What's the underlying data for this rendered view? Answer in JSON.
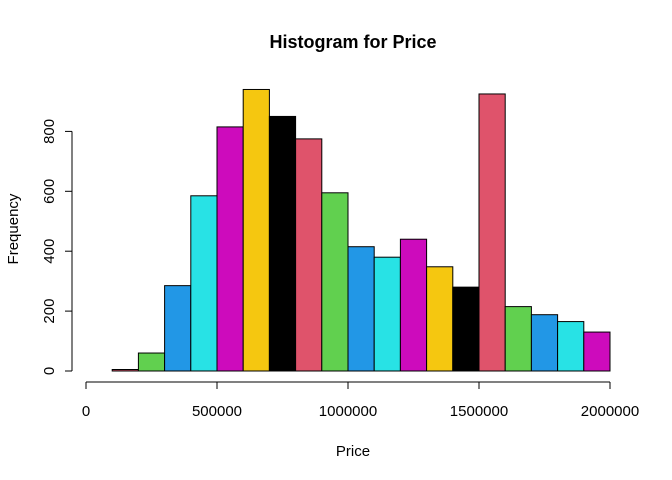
{
  "chart_data": {
    "type": "bar",
    "title": "Histogram for Price",
    "xlabel": "Price",
    "ylabel": "Frequency",
    "xlim": [
      0,
      2000000
    ],
    "ylim": [
      0,
      900
    ],
    "x_ticks": [
      0,
      500000,
      1000000,
      1500000,
      2000000
    ],
    "x_tick_labels": [
      "0",
      "500000",
      "1000000",
      "1500000",
      "2000000"
    ],
    "y_ticks": [
      0,
      200,
      400,
      600,
      800
    ],
    "y_tick_labels": [
      "0",
      "200",
      "400",
      "600",
      "800"
    ],
    "bin_width": 100000,
    "bins": [
      {
        "start": 100000,
        "end": 200000,
        "count": 5
      },
      {
        "start": 200000,
        "end": 300000,
        "count": 60
      },
      {
        "start": 300000,
        "end": 400000,
        "count": 285
      },
      {
        "start": 400000,
        "end": 500000,
        "count": 585
      },
      {
        "start": 500000,
        "end": 600000,
        "count": 815
      },
      {
        "start": 600000,
        "end": 700000,
        "count": 940
      },
      {
        "start": 700000,
        "end": 800000,
        "count": 850
      },
      {
        "start": 800000,
        "end": 900000,
        "count": 775
      },
      {
        "start": 900000,
        "end": 1000000,
        "count": 595
      },
      {
        "start": 1000000,
        "end": 1100000,
        "count": 415
      },
      {
        "start": 1100000,
        "end": 1200000,
        "count": 380
      },
      {
        "start": 1200000,
        "end": 1300000,
        "count": 440
      },
      {
        "start": 1300000,
        "end": 1400000,
        "count": 348
      },
      {
        "start": 1400000,
        "end": 1500000,
        "count": 280
      },
      {
        "start": 1500000,
        "end": 1600000,
        "count": 925
      },
      {
        "start": 1600000,
        "end": 1700000,
        "count": 215
      },
      {
        "start": 1700000,
        "end": 1800000,
        "count": 188
      },
      {
        "start": 1800000,
        "end": 1900000,
        "count": 165
      },
      {
        "start": 1900000,
        "end": 2000000,
        "count": 130
      }
    ],
    "palette": [
      "#000000",
      "#DF536B",
      "#61D04F",
      "#2297E6",
      "#28E2E5",
      "#CD0BBC",
      "#F5C710"
    ],
    "grid": false
  }
}
